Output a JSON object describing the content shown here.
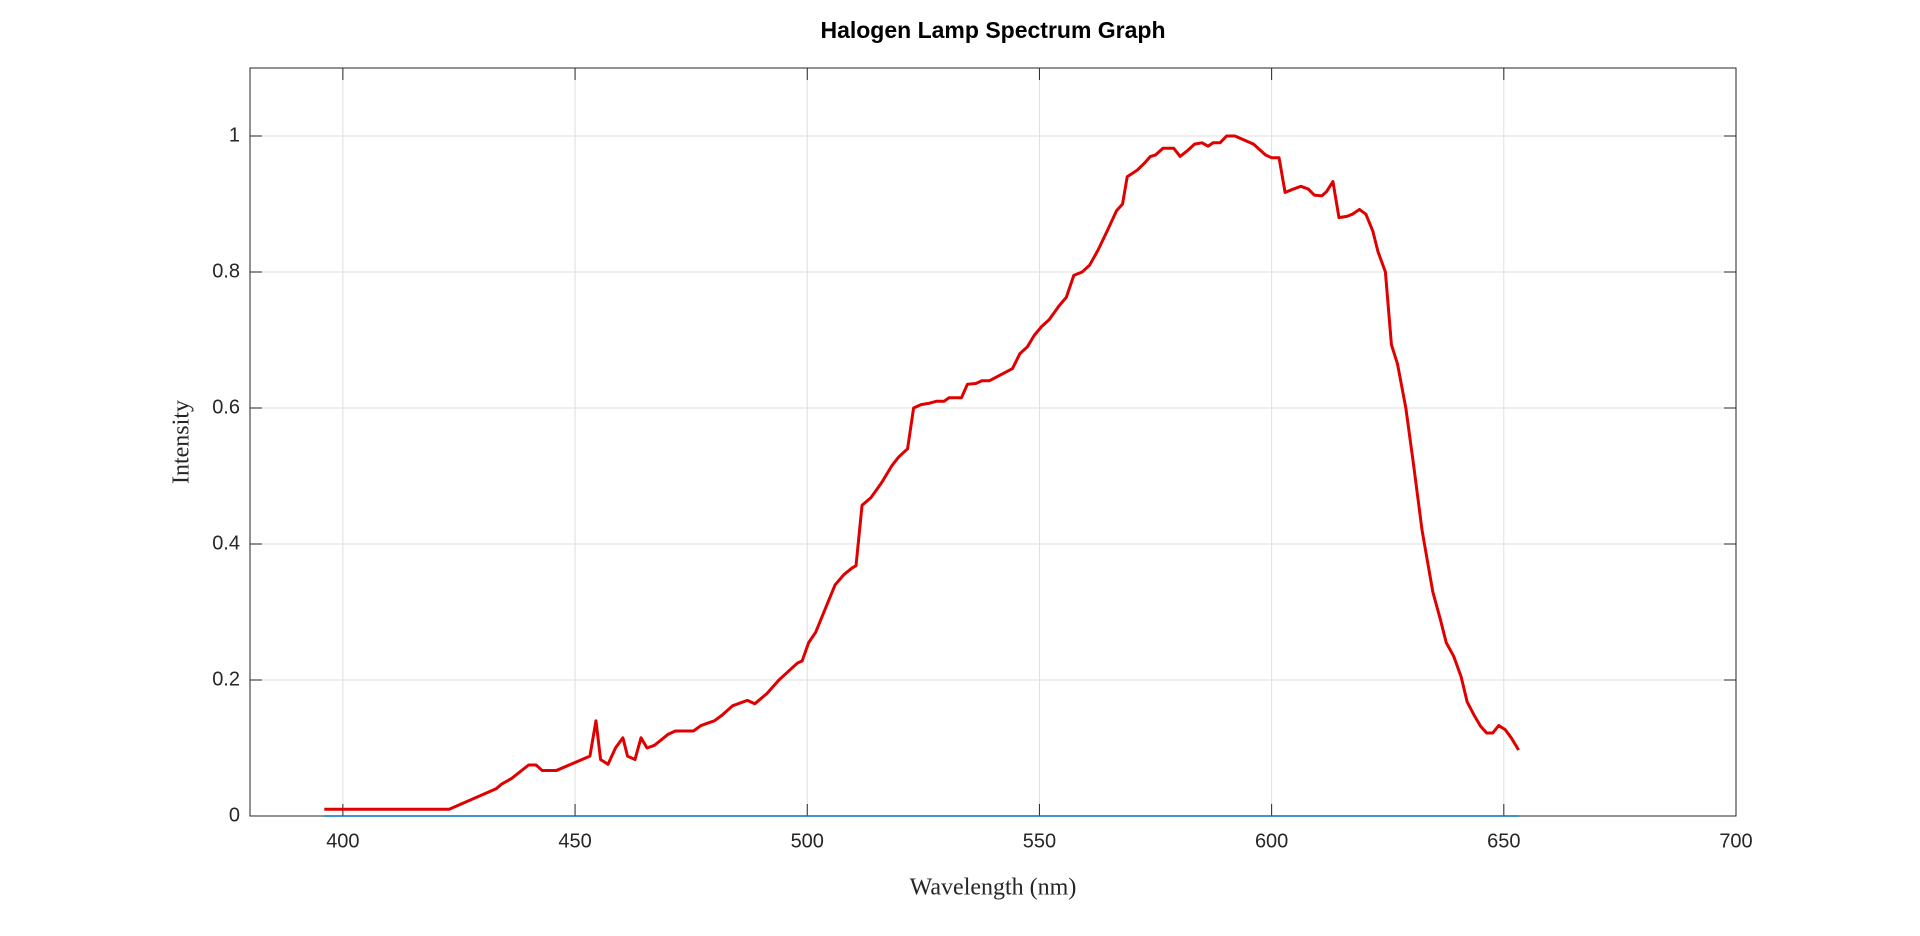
{
  "chart_data": {
    "type": "line",
    "title": "Halogen Lamp Spectrum Graph",
    "x_label": "Wavelength (nm)",
    "y_label": "Intensity",
    "xlim": [
      380,
      700
    ],
    "xticks": [
      400,
      450,
      500,
      550,
      600,
      650,
      700
    ],
    "ylim": [
      0,
      1.1
    ],
    "yticks": [
      0,
      0.2,
      0.4,
      0.6,
      0.8,
      1
    ],
    "grid": true,
    "series": [
      {
        "color": "#e00000",
        "x": [
          396,
          422.9,
          433,
          434.2,
          436.3,
          440,
          441.6,
          442.9,
          446,
          453.2,
          454.5,
          455.5,
          457.1,
          458.7,
          460.3,
          461.3,
          462.9,
          464.2,
          465.5,
          467.1,
          470,
          471.6,
          475.5,
          477.1,
          480,
          481.6,
          483.9,
          487.1,
          488.7,
          491.3,
          493.9,
          495.5,
          497.9,
          498.9,
          500.3,
          501.8,
          504.2,
          506,
          507.9,
          509.7,
          510.5,
          511.8,
          513.7,
          516,
          518.2,
          519.7,
          521.6,
          522.9,
          524.5,
          526.3,
          527.9,
          529.5,
          530.5,
          533.2,
          534.5,
          536.3,
          537.6,
          539.2,
          544.2,
          545.8,
          547.4,
          548.9,
          550.5,
          552.1,
          554.2,
          555.8,
          557.4,
          559.2,
          560.8,
          562.6,
          564.7,
          566.6,
          567.9,
          568.9,
          571.1,
          572.6,
          573.9,
          575,
          576.6,
          578.9,
          580.3,
          581.8,
          583.4,
          585,
          586.3,
          587.4,
          588.9,
          590.3,
          592.1,
          596.1,
          598.7,
          600,
          601.6,
          602.9,
          604.7,
          606.3,
          607.9,
          609.2,
          610.8,
          611.8,
          613.2,
          614.5,
          616.3,
          617.4,
          618.9,
          620.3,
          621.8,
          622.9,
          624.5,
          625.8,
          627.1,
          628.9,
          630.5,
          632.4,
          634.7,
          636.3,
          637.6,
          639.2,
          640.8,
          642.1,
          643.7,
          645,
          646.3,
          647.6,
          648.9,
          650.3,
          651.6,
          653.2
        ],
        "values": [
          0.01,
          0.01,
          0.04,
          0.047,
          0.055,
          0.075,
          0.075,
          0.067,
          0.067,
          0.088,
          0.14,
          0.083,
          0.076,
          0.1,
          0.115,
          0.088,
          0.083,
          0.115,
          0.1,
          0.104,
          0.12,
          0.125,
          0.125,
          0.133,
          0.14,
          0.148,
          0.162,
          0.17,
          0.165,
          0.18,
          0.2,
          0.21,
          0.225,
          0.228,
          0.255,
          0.27,
          0.31,
          0.34,
          0.355,
          0.365,
          0.368,
          0.457,
          0.468,
          0.49,
          0.515,
          0.528,
          0.54,
          0.6,
          0.605,
          0.607,
          0.61,
          0.61,
          0.615,
          0.615,
          0.635,
          0.636,
          0.64,
          0.64,
          0.658,
          0.68,
          0.69,
          0.707,
          0.72,
          0.73,
          0.75,
          0.763,
          0.795,
          0.8,
          0.81,
          0.832,
          0.862,
          0.89,
          0.9,
          0.94,
          0.95,
          0.96,
          0.97,
          0.972,
          0.982,
          0.982,
          0.97,
          0.978,
          0.988,
          0.99,
          0.985,
          0.99,
          0.99,
          1.0,
          1.0,
          0.988,
          0.972,
          0.968,
          0.968,
          0.917,
          0.922,
          0.926,
          0.922,
          0.913,
          0.912,
          0.918,
          0.933,
          0.88,
          0.882,
          0.885,
          0.892,
          0.885,
          0.86,
          0.83,
          0.8,
          0.693,
          0.665,
          0.6,
          0.52,
          0.42,
          0.33,
          0.29,
          0.255,
          0.235,
          0.205,
          0.168,
          0.147,
          0.132,
          0.122,
          0.122,
          0.133,
          0.127,
          0.115,
          0.097
        ]
      },
      {
        "color": "#0072bd",
        "x": [
          396,
          653.2
        ],
        "values": [
          0,
          0
        ]
      }
    ]
  }
}
